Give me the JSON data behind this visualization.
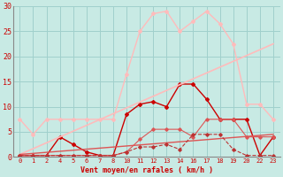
{
  "xlabel": "Vent moyen/en rafales ( km/h )",
  "background_color": "#c8eae4",
  "grid_color": "#a0d0cc",
  "x_labels": [
    "0",
    "1",
    "2",
    "4",
    "5",
    "6",
    "7",
    "8",
    "10",
    "11",
    "12",
    "13",
    "14",
    "16",
    "17",
    "18",
    "19",
    "20",
    "22",
    "23"
  ],
  "ylim": [
    0,
    30
  ],
  "yticks": [
    0,
    5,
    10,
    15,
    20,
    25,
    30
  ],
  "series": [
    {
      "xi": [
        0,
        1,
        2,
        3,
        4,
        5,
        6,
        7,
        8,
        9,
        10,
        11,
        12,
        13,
        14,
        15,
        16,
        17,
        18,
        19
      ],
      "y": [
        7.5,
        4.5,
        7.5,
        7.5,
        7.5,
        7.5,
        7.5,
        7.5,
        16.5,
        25.0,
        28.5,
        29.0,
        25.0,
        27.0,
        29.0,
        26.5,
        22.5,
        10.5,
        10.5,
        7.5
      ],
      "color": "#ffbbbb",
      "linewidth": 1.0,
      "marker": "D",
      "markersize": 2.0
    },
    {
      "xi": [
        0,
        1,
        2,
        3,
        4,
        5,
        6,
        7,
        8,
        9,
        10,
        11,
        12,
        13,
        14,
        15,
        16,
        17,
        18,
        19
      ],
      "y": [
        0.3,
        0.3,
        0.3,
        4.0,
        2.5,
        1.0,
        0.3,
        0.3,
        8.5,
        10.5,
        11.0,
        10.0,
        14.5,
        14.5,
        11.5,
        7.5,
        7.5,
        7.5,
        0.3,
        4.0
      ],
      "color": "#cc0000",
      "linewidth": 1.0,
      "marker": "D",
      "markersize": 2.0
    },
    {
      "xi": [
        0,
        19
      ],
      "y": [
        0.5,
        22.5
      ],
      "color": "#ffbbbb",
      "linewidth": 1.2,
      "marker": null,
      "markersize": 0
    },
    {
      "xi": [
        0,
        19
      ],
      "y": [
        0.5,
        4.5
      ],
      "color": "#dd5555",
      "linewidth": 1.0,
      "marker": null,
      "markersize": 0
    },
    {
      "xi": [
        0,
        1,
        2,
        3,
        4,
        5,
        6,
        7,
        8,
        9,
        10,
        11,
        12,
        13,
        14,
        15,
        16,
        17,
        18,
        19
      ],
      "y": [
        0.3,
        0.3,
        0.3,
        0.3,
        0.3,
        0.3,
        0.3,
        0.3,
        1.0,
        3.5,
        5.5,
        5.5,
        5.5,
        4.0,
        7.5,
        7.5,
        7.5,
        4.0,
        4.0,
        4.0
      ],
      "color": "#dd5555",
      "linewidth": 0.8,
      "marker": "D",
      "markersize": 1.8
    },
    {
      "xi": [
        0,
        1,
        2,
        3,
        4,
        5,
        6,
        7,
        8,
        9,
        10,
        11,
        12,
        13,
        14,
        15,
        16,
        17,
        18,
        19
      ],
      "y": [
        0.3,
        0.3,
        0.3,
        0.3,
        0.3,
        0.3,
        0.3,
        0.3,
        1.0,
        2.0,
        2.0,
        2.5,
        1.5,
        4.5,
        4.5,
        4.5,
        1.5,
        0.3,
        0.3,
        0.3
      ],
      "color": "#bb3333",
      "linewidth": 0.8,
      "marker": "D",
      "markersize": 1.8,
      "linestyle": "--"
    }
  ]
}
